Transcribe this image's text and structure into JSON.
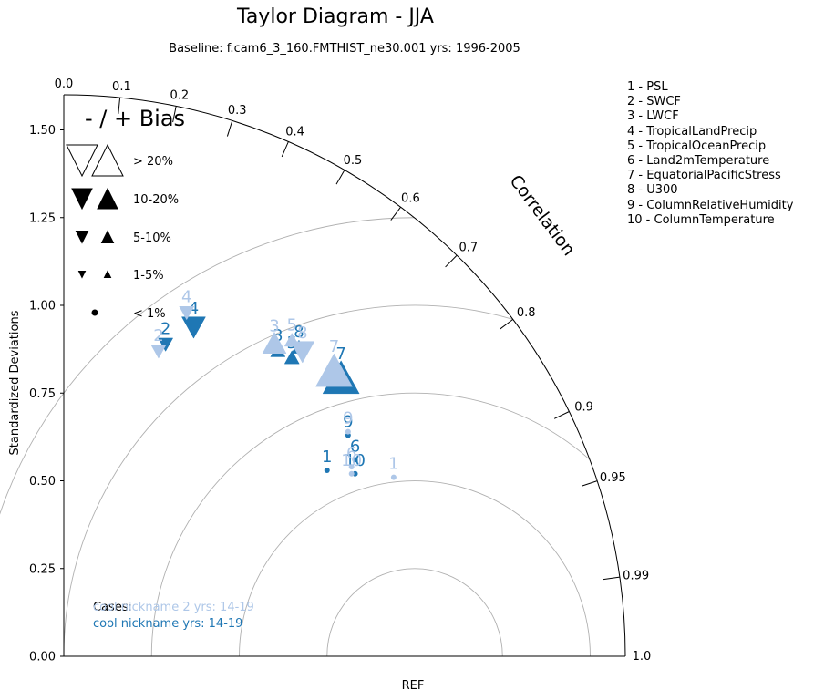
{
  "chart_data": {
    "type": "scatter",
    "title": "Taylor Diagram - JJA",
    "subtitle": "Baseline: f.cam6_3_160.FMTHIST_ne30.001  yrs: 1996-2005",
    "ylabel": "Standardized Deviations",
    "xlabel": "REF",
    "angular_label": "Correlation",
    "std_ticks": [
      "0.00",
      "0.25",
      "0.50",
      "0.75",
      "1.00",
      "1.25",
      "1.50"
    ],
    "std_max": 1.6,
    "correlation_ticks": [
      {
        "value": 0.0,
        "label": "0.0"
      },
      {
        "value": 0.1,
        "label": "0.1"
      },
      {
        "value": 0.2,
        "label": "0.2"
      },
      {
        "value": 0.3,
        "label": "0.3"
      },
      {
        "value": 0.4,
        "label": "0.4"
      },
      {
        "value": 0.5,
        "label": "0.5"
      },
      {
        "value": 0.6,
        "label": "0.6"
      },
      {
        "value": 0.7,
        "label": "0.7"
      },
      {
        "value": 0.8,
        "label": "0.8"
      },
      {
        "value": 0.9,
        "label": "0.9"
      },
      {
        "value": 0.95,
        "label": "0.95"
      },
      {
        "value": 0.99,
        "label": "0.99"
      },
      {
        "value": 1.0,
        "label": "1.0"
      }
    ],
    "rms_circles": [
      0.25,
      0.5,
      0.75,
      1.0,
      1.25
    ],
    "variables": [
      "1 - PSL",
      "2 - SWCF",
      "3 - LWCF",
      "4 - TropicalLandPrecip",
      "5 - TropicalOceanPrecip",
      "6 - Land2mTemperature",
      "7 - EquatorialPacificStress",
      "8 - U300",
      "9 - ColumnRelativeHumidity",
      "10 - ColumnTemperature"
    ],
    "bias_legend": {
      "title": "- / + Bias",
      "entries": [
        "> 20%",
        "10-20%",
        "5-10%",
        "1-5%",
        "< 1%"
      ]
    },
    "cases_label": "Cases:",
    "series": [
      {
        "name": "cool nickname 2  yrs: 14-19",
        "color": "#aec7e8",
        "points": [
          {
            "id": 1,
            "label": "1",
            "x": 0.94,
            "y": 0.51,
            "marker": "dot"
          },
          {
            "id": 2,
            "label": "2",
            "x": 0.27,
            "y": 0.87,
            "marker": "down-small"
          },
          {
            "id": 3,
            "label": "3",
            "x": 0.6,
            "y": 0.89,
            "marker": "up-medium"
          },
          {
            "id": 4,
            "label": "4",
            "x": 0.35,
            "y": 0.98,
            "marker": "down-small"
          },
          {
            "id": 5,
            "label": "5",
            "x": 0.65,
            "y": 0.9,
            "marker": "up-small"
          },
          {
            "id": 6,
            "label": "6",
            "x": 0.82,
            "y": 0.54,
            "marker": "dot"
          },
          {
            "id": 7,
            "label": "7",
            "x": 0.77,
            "y": 0.81,
            "marker": "up-large"
          },
          {
            "id": 8,
            "label": "8",
            "x": 0.68,
            "y": 0.87,
            "marker": "down-medium"
          },
          {
            "id": 9,
            "label": "9",
            "x": 0.81,
            "y": 0.64,
            "marker": "dot"
          },
          {
            "id": 10,
            "label": "10",
            "x": 0.82,
            "y": 0.52,
            "marker": "dot"
          }
        ]
      },
      {
        "name": "cool nickname  yrs: 14-19",
        "color": "#1f77b4",
        "points": [
          {
            "id": 1,
            "label": "1",
            "x": 0.75,
            "y": 0.53,
            "marker": "dot"
          },
          {
            "id": 2,
            "label": "2",
            "x": 0.29,
            "y": 0.89,
            "marker": "down-small"
          },
          {
            "id": 3,
            "label": "3",
            "x": 0.61,
            "y": 0.87,
            "marker": "up-small"
          },
          {
            "id": 4,
            "label": "4",
            "x": 0.37,
            "y": 0.94,
            "marker": "down-medium"
          },
          {
            "id": 5,
            "label": "5",
            "x": 0.65,
            "y": 0.85,
            "marker": "up-small"
          },
          {
            "id": 6,
            "label": "6",
            "x": 0.83,
            "y": 0.56,
            "marker": "dot"
          },
          {
            "id": 7,
            "label": "7",
            "x": 0.79,
            "y": 0.79,
            "marker": "up-large"
          },
          {
            "id": 8,
            "label": "8",
            "x": 0.67,
            "y": 0.88,
            "marker": "up-small"
          },
          {
            "id": 9,
            "label": "9",
            "x": 0.81,
            "y": 0.63,
            "marker": "dot"
          },
          {
            "id": 10,
            "label": "10",
            "x": 0.83,
            "y": 0.52,
            "marker": "dot"
          }
        ]
      }
    ]
  }
}
